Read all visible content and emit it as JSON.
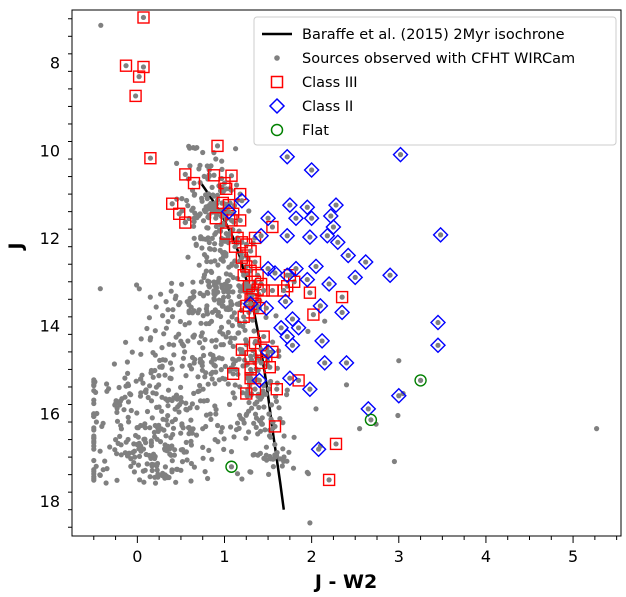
{
  "chart_data": {
    "type": "scatter",
    "xlabel": "J - W2",
    "ylabel": "J",
    "xlim": [
      -0.75,
      5.55
    ],
    "ylim": [
      18.8,
      6.8
    ],
    "y_inverted": true,
    "x_ticks": [
      0,
      1,
      2,
      3,
      4,
      5
    ],
    "y_ticks": [
      8,
      10,
      12,
      14,
      16,
      18
    ],
    "grid": false,
    "legend_position": "top-right",
    "colors": {
      "isochrone": "#000000",
      "sources": "#808080",
      "class3": "#ff0000",
      "class2": "#0000ff",
      "flat": "#008000"
    },
    "series": [
      {
        "key": "isochrone",
        "name": "Baraffe et al. (2015) 2Myr isochrone",
        "style": "line",
        "points": [
          [
            0.72,
            10.72
          ],
          [
            0.8,
            10.95
          ],
          [
            0.9,
            11.25
          ],
          [
            1.0,
            11.6
          ],
          [
            1.1,
            12.0
          ],
          [
            1.18,
            12.45
          ],
          [
            1.25,
            12.95
          ],
          [
            1.32,
            13.5
          ],
          [
            1.38,
            14.1
          ],
          [
            1.43,
            14.7
          ],
          [
            1.48,
            15.3
          ],
          [
            1.52,
            15.9
          ],
          [
            1.56,
            16.5
          ],
          [
            1.6,
            17.05
          ],
          [
            1.64,
            17.6
          ],
          [
            1.68,
            18.2
          ]
        ]
      },
      {
        "key": "sources",
        "name": "Sources observed with CFHT WIRCam",
        "style": "dot",
        "count": 900,
        "points": [
          [
            -0.42,
            7.15
          ],
          [
            5.27,
            16.35
          ],
          [
            3.05,
            15.55
          ],
          [
            2.99,
            16.05
          ],
          [
            2.74,
            16.25
          ],
          [
            2.95,
            17.1
          ],
          [
            1.95,
            17.35
          ],
          [
            2.1,
            16.75
          ],
          [
            2.05,
            15.9
          ],
          [
            2.4,
            15.35
          ],
          [
            2.55,
            16.35
          ],
          [
            3.0,
            14.8
          ],
          [
            2.15,
            13.9
          ],
          [
            0.6,
            9.95
          ],
          [
            0.75,
            10.05
          ],
          [
            0.9,
            10.2
          ],
          [
            0.45,
            10.3
          ],
          [
            1.98,
            18.5
          ],
          [
            -0.35,
            15.5
          ],
          [
            -0.47,
            16.2
          ],
          [
            -0.25,
            16.6
          ],
          [
            0.5,
            17.3
          ],
          [
            1.2,
            17.5
          ]
        ]
      },
      {
        "key": "class3",
        "name": "Class III",
        "style": "square",
        "points": [
          [
            0.07,
            6.97
          ],
          [
            -0.13,
            8.07
          ],
          [
            0.07,
            8.1
          ],
          [
            0.02,
            8.32
          ],
          [
            -0.02,
            8.76
          ],
          [
            0.15,
            10.18
          ],
          [
            0.92,
            9.9
          ],
          [
            0.55,
            10.55
          ],
          [
            0.88,
            10.57
          ],
          [
            1.08,
            10.58
          ],
          [
            0.65,
            10.75
          ],
          [
            1.0,
            10.75
          ],
          [
            1.02,
            10.88
          ],
          [
            1.18,
            11.0
          ],
          [
            0.4,
            11.22
          ],
          [
            0.98,
            11.2
          ],
          [
            1.05,
            11.25
          ],
          [
            0.48,
            11.45
          ],
          [
            1.1,
            11.45
          ],
          [
            0.9,
            11.55
          ],
          [
            1.08,
            11.6
          ],
          [
            0.55,
            11.65
          ],
          [
            1.18,
            11.6
          ],
          [
            1.55,
            11.75
          ],
          [
            1.02,
            11.9
          ],
          [
            1.15,
            12.0
          ],
          [
            1.2,
            12.1
          ],
          [
            1.12,
            12.2
          ],
          [
            1.25,
            12.15
          ],
          [
            1.35,
            12.0
          ],
          [
            1.3,
            12.3
          ],
          [
            1.2,
            12.45
          ],
          [
            1.35,
            12.55
          ],
          [
            1.25,
            12.65
          ],
          [
            1.3,
            12.75
          ],
          [
            1.22,
            12.85
          ],
          [
            1.38,
            12.85
          ],
          [
            1.35,
            13.0
          ],
          [
            1.28,
            13.1
          ],
          [
            1.42,
            13.05
          ],
          [
            1.38,
            13.18
          ],
          [
            1.32,
            13.3
          ],
          [
            1.45,
            13.2
          ],
          [
            1.55,
            13.2
          ],
          [
            1.72,
            13.1
          ],
          [
            1.68,
            13.2
          ],
          [
            1.8,
            13.0
          ],
          [
            1.75,
            12.85
          ],
          [
            1.98,
            13.25
          ],
          [
            2.02,
            13.75
          ],
          [
            2.35,
            13.35
          ],
          [
            1.3,
            13.4
          ],
          [
            1.35,
            13.5
          ],
          [
            1.25,
            13.55
          ],
          [
            1.28,
            13.7
          ],
          [
            1.4,
            13.6
          ],
          [
            1.22,
            13.8
          ],
          [
            1.45,
            14.25
          ],
          [
            1.35,
            14.4
          ],
          [
            1.2,
            14.55
          ],
          [
            1.42,
            14.55
          ],
          [
            1.3,
            14.7
          ],
          [
            1.48,
            14.7
          ],
          [
            1.55,
            14.6
          ],
          [
            1.42,
            14.85
          ],
          [
            1.52,
            14.95
          ],
          [
            1.3,
            15.0
          ],
          [
            1.1,
            15.1
          ],
          [
            1.3,
            15.2
          ],
          [
            1.35,
            15.45
          ],
          [
            1.25,
            15.55
          ],
          [
            1.6,
            15.45
          ],
          [
            1.85,
            15.25
          ],
          [
            1.58,
            16.3
          ],
          [
            2.28,
            16.7
          ],
          [
            2.2,
            17.52
          ]
        ]
      },
      {
        "key": "class2",
        "name": "Class II",
        "style": "diamond",
        "points": [
          [
            1.72,
            10.15
          ],
          [
            2.0,
            10.45
          ],
          [
            3.02,
            10.1
          ],
          [
            1.2,
            11.15
          ],
          [
            1.75,
            11.25
          ],
          [
            1.95,
            11.3
          ],
          [
            2.28,
            11.25
          ],
          [
            2.22,
            11.5
          ],
          [
            1.5,
            11.55
          ],
          [
            1.82,
            11.55
          ],
          [
            2.0,
            11.55
          ],
          [
            1.42,
            11.95
          ],
          [
            1.72,
            11.95
          ],
          [
            1.98,
            11.98
          ],
          [
            2.25,
            11.75
          ],
          [
            2.18,
            11.95
          ],
          [
            2.3,
            12.1
          ],
          [
            2.42,
            12.4
          ],
          [
            2.62,
            12.55
          ],
          [
            2.5,
            12.9
          ],
          [
            2.05,
            12.65
          ],
          [
            1.82,
            12.7
          ],
          [
            1.58,
            12.8
          ],
          [
            1.72,
            12.85
          ],
          [
            1.95,
            12.95
          ],
          [
            2.2,
            13.05
          ],
          [
            2.9,
            12.85
          ],
          [
            3.48,
            11.93
          ],
          [
            1.7,
            13.45
          ],
          [
            1.48,
            13.6
          ],
          [
            2.1,
            13.55
          ],
          [
            2.35,
            13.7
          ],
          [
            1.78,
            13.85
          ],
          [
            1.65,
            14.05
          ],
          [
            1.85,
            14.05
          ],
          [
            1.72,
            14.25
          ],
          [
            1.78,
            14.45
          ],
          [
            2.12,
            14.35
          ],
          [
            1.5,
            14.6
          ],
          [
            2.4,
            14.85
          ],
          [
            2.15,
            14.85
          ],
          [
            1.75,
            15.2
          ],
          [
            1.98,
            15.45
          ],
          [
            1.4,
            15.25
          ],
          [
            3.45,
            13.93
          ],
          [
            3.45,
            14.45
          ],
          [
            2.65,
            15.9
          ],
          [
            3.0,
            15.6
          ],
          [
            2.08,
            16.82
          ],
          [
            1.05,
            11.4
          ],
          [
            1.5,
            12.7
          ],
          [
            1.3,
            13.5
          ]
        ]
      },
      {
        "key": "flat",
        "name": "Flat",
        "style": "circle",
        "points": [
          [
            3.25,
            15.25
          ],
          [
            2.68,
            16.15
          ],
          [
            1.08,
            17.22
          ]
        ]
      }
    ]
  }
}
